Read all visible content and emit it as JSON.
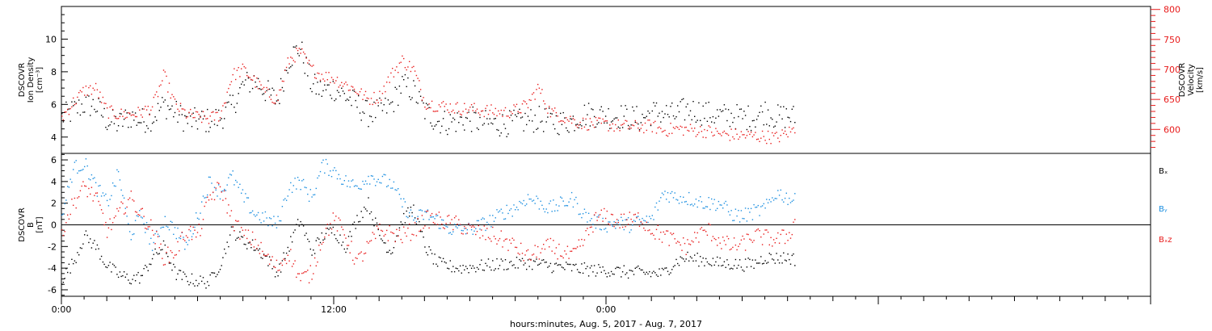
{
  "colors": {
    "black": "#000000",
    "red": "#e81b1b",
    "blue": "#1a8ee0"
  },
  "chart_data": [
    {
      "type": "scatter",
      "panel": "top",
      "ylabel_left": [
        "DSCOVR",
        "Ion Density",
        "[cm⁻³]"
      ],
      "ylabel_right": [
        "DSCOVR",
        "Velocity",
        "[km/s]"
      ],
      "left_axis": {
        "ylim": [
          3,
          12
        ],
        "ticks": [
          "4",
          "6",
          "8",
          "10"
        ]
      },
      "right_axis": {
        "ylim": [
          560,
          805
        ],
        "ticks": [
          "600",
          "650",
          "700",
          "750",
          "800"
        ]
      },
      "x_range_hours": [
        0,
        48
      ],
      "data_span_hours": [
        0,
        32.3
      ],
      "series": [
        {
          "axis": "left",
          "color": "black",
          "x": [
            0,
            0.5,
            1,
            1.5,
            2,
            2.5,
            3,
            3.5,
            4,
            4.5,
            5,
            5.5,
            6,
            6.5,
            7,
            7.5,
            8,
            8.5,
            9,
            9.5,
            10,
            10.5,
            11,
            11.5,
            12,
            12.5,
            13,
            13.5,
            14,
            14.5,
            15,
            15.5,
            16,
            16.5,
            17,
            17.5,
            18,
            18.5,
            19,
            19.5,
            20,
            20.5,
            21,
            21.5,
            22,
            22.5,
            23,
            23.5,
            24,
            24.5,
            25,
            25.5,
            26,
            26.5,
            27,
            27.5,
            28,
            28.5,
            29,
            29.5,
            30,
            30.5,
            31,
            31.5,
            32,
            32.3
          ],
          "y": [
            5.2,
            5.6,
            6.0,
            5.9,
            5.0,
            4.8,
            5.3,
            5.0,
            5.2,
            6.0,
            5.5,
            5.0,
            5.0,
            5.0,
            5.2,
            5.9,
            7.2,
            7.5,
            6.8,
            6.2,
            8.8,
            9.5,
            7.2,
            6.8,
            7.0,
            6.5,
            6.0,
            5.4,
            5.6,
            5.9,
            7.2,
            6.8,
            5.6,
            5.0,
            4.9,
            5.0,
            5.1,
            4.9,
            4.8,
            4.8,
            4.9,
            5.0,
            5.1,
            5.0,
            4.9,
            5.0,
            5.4,
            5.4,
            5.3,
            5.3,
            5.2,
            5.1,
            5.5,
            5.5,
            5.3,
            5.7,
            5.6,
            5.4,
            5.3,
            5.3,
            5.2,
            5.2,
            5.6,
            5.2,
            5.3,
            5.2
          ]
        },
        {
          "axis": "right",
          "color": "red",
          "x": [
            0,
            0.5,
            1,
            1.5,
            2,
            2.5,
            3,
            3.5,
            4,
            4.5,
            5,
            5.5,
            6,
            6.5,
            7,
            7.5,
            8,
            8.5,
            9,
            9.5,
            10,
            10.5,
            11,
            11.5,
            12,
            12.5,
            13,
            13.5,
            14,
            14.5,
            15,
            15.5,
            16,
            16.5,
            17,
            17.5,
            18,
            18.5,
            19,
            19.5,
            20,
            20.5,
            21,
            21.5,
            22,
            22.5,
            23,
            23.5,
            24,
            24.5,
            25,
            25.5,
            26,
            26.5,
            27,
            27.5,
            28,
            28.5,
            29,
            29.5,
            30,
            30.5,
            31,
            31.5,
            32,
            32.3
          ],
          "y": [
            620,
            645,
            665,
            668,
            630,
            625,
            625,
            628,
            638,
            690,
            640,
            625,
            620,
            618,
            625,
            690,
            700,
            680,
            660,
            650,
            715,
            730,
            700,
            690,
            685,
            675,
            665,
            650,
            655,
            690,
            715,
            700,
            645,
            640,
            638,
            635,
            634,
            632,
            630,
            628,
            632,
            640,
            670,
            630,
            622,
            615,
            610,
            609,
            608,
            606,
            605,
            604,
            606,
            598,
            601,
            600,
            598,
            597,
            592,
            591,
            590,
            589,
            588,
            586,
            595,
            600
          ]
        }
      ]
    },
    {
      "type": "scatter",
      "panel": "bottom",
      "ylabel_left": [
        "DSCOVR",
        "B",
        "[nT]"
      ],
      "axis": {
        "ylim": [
          -6.6,
          6.6
        ],
        "ticks": [
          "-6",
          "-4",
          "-2",
          "0",
          "2",
          "4",
          "6"
        ]
      },
      "xlabel": "hours:minutes, Aug.  5, 2017 - Aug.  7, 2017",
      "x_ticks": [
        "0:00",
        "12:00",
        "0:00"
      ],
      "x_range_hours": [
        0,
        48
      ],
      "data_span_hours": [
        0,
        32.3
      ],
      "series": [
        {
          "name": "Bₓ",
          "color": "black",
          "x": [
            0,
            0.5,
            1,
            1.5,
            2,
            2.5,
            3,
            3.5,
            4,
            4.5,
            5,
            5.5,
            6,
            6.5,
            7,
            7.5,
            8,
            8.5,
            9,
            9.5,
            10,
            10.5,
            11,
            11.5,
            12,
            12.5,
            13,
            13.5,
            14,
            14.5,
            15,
            15.5,
            16,
            16.5,
            17,
            17.5,
            18,
            18.5,
            19,
            19.5,
            20,
            20.5,
            21,
            21.5,
            22,
            22.5,
            23,
            23.5,
            24,
            24.5,
            25,
            25.5,
            26,
            26.5,
            27,
            27.5,
            28,
            28.5,
            29,
            29.5,
            30,
            30.5,
            31,
            31.5,
            32,
            32.3
          ],
          "y": [
            -5.0,
            -3.5,
            -1.0,
            -2.0,
            -3.8,
            -4.6,
            -5.0,
            -4.8,
            -3.0,
            -2.0,
            -4.5,
            -5.0,
            -5.2,
            -5.3,
            -3.5,
            -0.5,
            -1.5,
            -2.0,
            -3.0,
            -4.5,
            -2.0,
            0.5,
            -2.5,
            -1.0,
            -0.5,
            -2.0,
            0.5,
            2.0,
            -1.0,
            -2.5,
            0.5,
            1.5,
            -2.0,
            -3.5,
            -3.8,
            -4.0,
            -3.9,
            -3.8,
            -3.7,
            -3.6,
            -3.6,
            -3.5,
            -3.6,
            -3.8,
            -3.9,
            -4.0,
            -4.1,
            -4.2,
            -4.2,
            -4.3,
            -4.4,
            -4.4,
            -4.5,
            -4.5,
            -3.5,
            -3.0,
            -3.2,
            -3.3,
            -3.6,
            -3.6,
            -3.7,
            -3.6,
            -3.0,
            -3.1,
            -3.0,
            -3.2
          ]
        },
        {
          "name": "Bᵧ",
          "color": "blue",
          "x": [
            0,
            0.5,
            1,
            1.5,
            2,
            2.5,
            3,
            3.5,
            4,
            4.5,
            5,
            5.5,
            6,
            6.5,
            7,
            7.5,
            8,
            8.5,
            9,
            9.5,
            10,
            10.5,
            11,
            11.5,
            12,
            12.5,
            13,
            13.5,
            14,
            14.5,
            15,
            15.5,
            16,
            16.5,
            17,
            17.5,
            18,
            18.5,
            19,
            19.5,
            20,
            20.5,
            21,
            21.5,
            22,
            22.5,
            23,
            23.5,
            24,
            24.5,
            25,
            25.5,
            26,
            26.5,
            27,
            27.5,
            28,
            28.5,
            29,
            29.5,
            30,
            30.5,
            31,
            31.5,
            32,
            32.3
          ],
          "y": [
            0.8,
            5.2,
            5.7,
            3.5,
            2.0,
            4.8,
            -1.0,
            1.0,
            -2.0,
            0.5,
            -0.5,
            -2.0,
            1.0,
            4.0,
            3.0,
            4.5,
            2.5,
            1.0,
            0.5,
            0.0,
            3.5,
            4.0,
            2.5,
            5.5,
            5.0,
            4.0,
            3.5,
            4.5,
            4.2,
            3.8,
            2.0,
            0.5,
            1.0,
            0.5,
            -0.3,
            -0.5,
            -0.4,
            0.0,
            0.5,
            1.2,
            1.6,
            2.5,
            2.1,
            1.5,
            1.9,
            2.4,
            1.0,
            0.3,
            0.0,
            0.2,
            0.0,
            0.3,
            0.5,
            3.0,
            2.6,
            2.5,
            2.2,
            2.0,
            2.0,
            1.0,
            0.8,
            1.2,
            1.5,
            3.0,
            2.5,
            2.2
          ]
        },
        {
          "name": "Bₓz",
          "color": "red",
          "x": [
            0,
            0.5,
            1,
            1.5,
            2,
            2.5,
            3,
            3.5,
            4,
            4.5,
            5,
            5.5,
            6,
            6.5,
            7,
            7.5,
            8,
            8.5,
            9,
            9.5,
            10,
            10.5,
            11,
            11.5,
            12,
            12.5,
            13,
            13.5,
            14,
            14.5,
            15,
            15.5,
            16,
            16.5,
            17,
            17.5,
            18,
            18.5,
            19,
            19.5,
            20,
            20.5,
            21,
            21.5,
            22,
            22.5,
            23,
            23.5,
            24,
            24.5,
            25,
            25.5,
            26,
            26.5,
            27,
            27.5,
            28,
            28.5,
            29,
            29.5,
            30,
            30.5,
            31,
            31.5,
            32,
            32.3
          ],
          "y": [
            -0.5,
            2.0,
            3.5,
            2.5,
            -0.5,
            1.0,
            2.5,
            1.0,
            -0.5,
            -3.0,
            -2.5,
            -0.5,
            -1.0,
            2.5,
            3.5,
            0.5,
            -1.0,
            -1.5,
            -3.0,
            -4.0,
            -2.5,
            -5.0,
            -4.5,
            -1.0,
            0.5,
            -1.0,
            -3.5,
            -2.0,
            -0.5,
            -0.8,
            -1.0,
            -0.5,
            0.5,
            0.5,
            0.2,
            0.0,
            -0.5,
            -0.8,
            -1.0,
            -1.5,
            -2.0,
            -3.0,
            -2.5,
            -2.0,
            -2.5,
            -3.0,
            -1.5,
            0.5,
            0.8,
            0.3,
            0.4,
            0.6,
            -0.5,
            -1.0,
            -1.5,
            -2.0,
            -1.0,
            -0.5,
            -1.5,
            -2.0,
            -1.8,
            -1.0,
            -1.2,
            -1.4,
            -1.0,
            0.2
          ]
        }
      ]
    }
  ]
}
